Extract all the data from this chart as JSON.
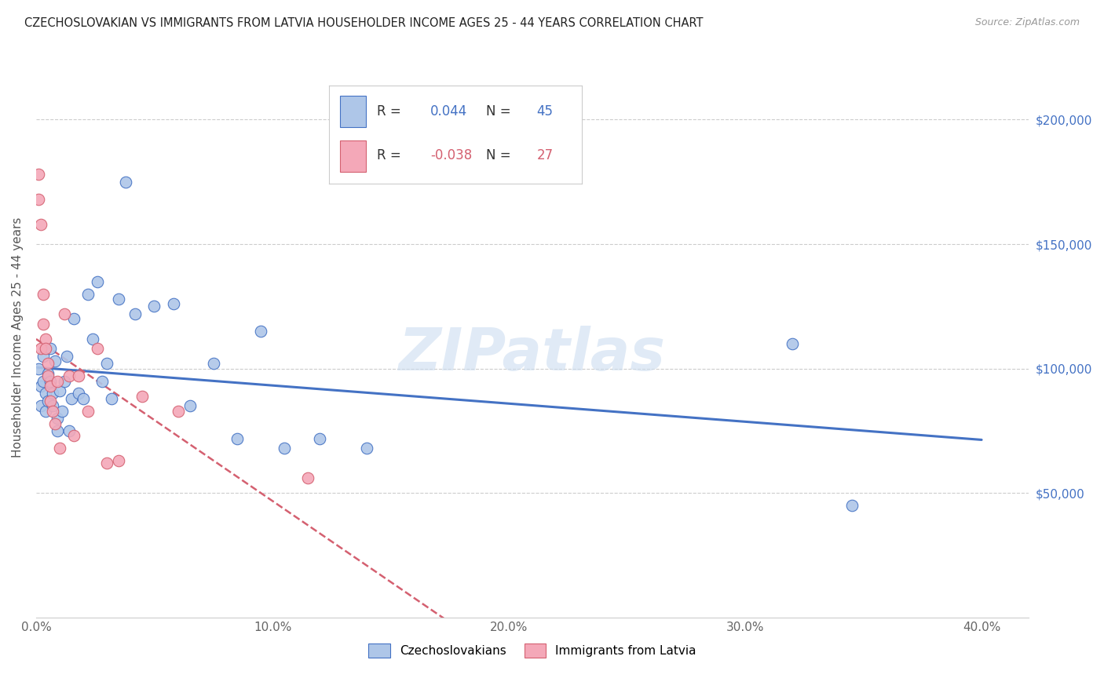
{
  "title": "CZECHOSLOVAKIAN VS IMMIGRANTS FROM LATVIA HOUSEHOLDER INCOME AGES 25 - 44 YEARS CORRELATION CHART",
  "source": "Source: ZipAtlas.com",
  "ylabel": "Householder Income Ages 25 - 44 years",
  "xlim": [
    0.0,
    0.42
  ],
  "ylim": [
    0,
    225000
  ],
  "xtick_labels": [
    "0.0%",
    "",
    "10.0%",
    "",
    "20.0%",
    "",
    "30.0%",
    "",
    "40.0%"
  ],
  "xtick_positions": [
    0.0,
    0.05,
    0.1,
    0.15,
    0.2,
    0.25,
    0.3,
    0.35,
    0.4
  ],
  "ytick_labels_right": [
    "$50,000",
    "$100,000",
    "$150,000",
    "$200,000"
  ],
  "ytick_positions": [
    50000,
    100000,
    150000,
    200000
  ],
  "R_czech": 0.044,
  "N_czech": 45,
  "R_latvia": -0.038,
  "N_latvia": 27,
  "color_czech": "#aec6e8",
  "color_latvia": "#f4a8b8",
  "color_czech_line": "#4472c4",
  "color_latvia_line": "#d46070",
  "watermark": "ZIPatlas",
  "czech_x": [
    0.001,
    0.002,
    0.002,
    0.003,
    0.003,
    0.004,
    0.004,
    0.005,
    0.005,
    0.006,
    0.006,
    0.007,
    0.007,
    0.008,
    0.009,
    0.009,
    0.01,
    0.011,
    0.012,
    0.013,
    0.014,
    0.015,
    0.016,
    0.018,
    0.02,
    0.022,
    0.024,
    0.026,
    0.028,
    0.03,
    0.032,
    0.035,
    0.038,
    0.042,
    0.05,
    0.058,
    0.065,
    0.075,
    0.085,
    0.095,
    0.105,
    0.12,
    0.14,
    0.32,
    0.345
  ],
  "czech_y": [
    100000,
    93000,
    85000,
    105000,
    95000,
    90000,
    83000,
    98000,
    87000,
    108000,
    95000,
    90000,
    85000,
    103000,
    80000,
    75000,
    91000,
    83000,
    95000,
    105000,
    75000,
    88000,
    120000,
    90000,
    88000,
    130000,
    112000,
    135000,
    95000,
    102000,
    88000,
    128000,
    175000,
    122000,
    125000,
    126000,
    85000,
    102000,
    72000,
    115000,
    68000,
    72000,
    68000,
    110000,
    45000
  ],
  "latvia_x": [
    0.001,
    0.001,
    0.002,
    0.002,
    0.003,
    0.003,
    0.004,
    0.004,
    0.005,
    0.005,
    0.006,
    0.006,
    0.007,
    0.008,
    0.009,
    0.01,
    0.012,
    0.014,
    0.016,
    0.018,
    0.022,
    0.026,
    0.03,
    0.035,
    0.045,
    0.06,
    0.115
  ],
  "latvia_y": [
    178000,
    168000,
    158000,
    108000,
    130000,
    118000,
    112000,
    108000,
    102000,
    97000,
    93000,
    87000,
    83000,
    78000,
    95000,
    68000,
    122000,
    97000,
    73000,
    97000,
    83000,
    108000,
    62000,
    63000,
    89000,
    83000,
    56000
  ]
}
